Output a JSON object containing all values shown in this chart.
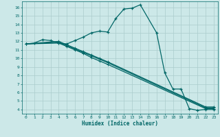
{
  "xlabel": "Humidex (Indice chaleur)",
  "background_color": "#cce8e8",
  "grid_color": "#aacccc",
  "line_color": "#006666",
  "xlim": [
    -0.5,
    23.5
  ],
  "ylim": [
    3.5,
    16.7
  ],
  "xticks": [
    0,
    1,
    2,
    3,
    4,
    5,
    6,
    7,
    8,
    9,
    10,
    11,
    12,
    13,
    14,
    15,
    16,
    17,
    18,
    19,
    20,
    21,
    22,
    23
  ],
  "yticks": [
    4,
    5,
    6,
    7,
    8,
    9,
    10,
    11,
    12,
    13,
    14,
    15,
    16
  ],
  "series": [
    {
      "x": [
        0,
        1,
        2,
        3,
        4,
        5,
        6,
        7,
        8,
        9,
        10,
        11,
        12,
        13,
        14,
        16,
        17,
        18,
        19,
        20,
        21,
        22,
        23
      ],
      "y": [
        11.7,
        11.8,
        12.2,
        12.1,
        11.8,
        11.7,
        12.1,
        12.5,
        13.0,
        13.2,
        13.1,
        14.7,
        15.8,
        15.9,
        16.3,
        13.0,
        8.3,
        6.4,
        6.4,
        4.1,
        3.9,
        4.0,
        4.0
      ]
    },
    {
      "x": [
        0,
        4,
        5,
        6,
        7,
        8,
        9,
        10,
        22,
        23
      ],
      "y": [
        11.7,
        11.8,
        11.4,
        11.0,
        10.6,
        10.1,
        9.7,
        9.3,
        4.1,
        4.1
      ]
    },
    {
      "x": [
        0,
        4,
        5,
        6,
        7,
        8,
        9,
        10,
        22,
        23
      ],
      "y": [
        11.7,
        11.9,
        11.5,
        11.1,
        10.7,
        10.3,
        9.9,
        9.5,
        4.2,
        4.2
      ]
    },
    {
      "x": [
        0,
        4,
        5,
        6,
        7,
        8,
        9,
        10,
        22,
        23
      ],
      "y": [
        11.7,
        12.0,
        11.6,
        11.2,
        10.8,
        10.4,
        10.0,
        9.6,
        4.3,
        4.3
      ]
    }
  ]
}
